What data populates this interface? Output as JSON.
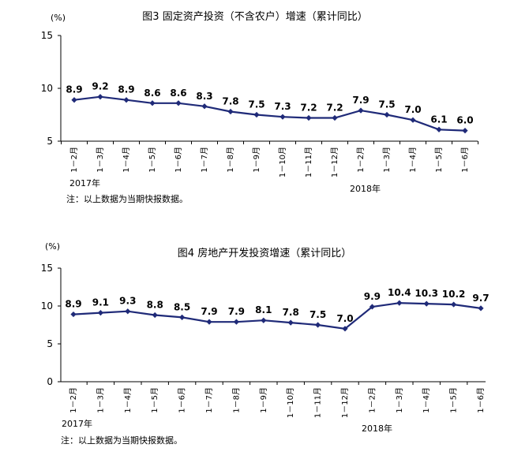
{
  "chart_data": [
    {
      "type": "line",
      "title": "图3   固定资产投资（不含农户）增速（累计同比）",
      "unit": "(%)",
      "yticks": [
        "5",
        "10",
        "15"
      ],
      "ylim": [
        5,
        15
      ],
      "categories": [
        "1－2月",
        "1－3月",
        "1－4月",
        "1－5月",
        "1－6月",
        "1－7月",
        "1－8月",
        "1－9月",
        "1－10月",
        "1－11月",
        "1－12月",
        "1－2月",
        "1－3月",
        "1－4月",
        "1－5月",
        "1－6月"
      ],
      "values": [
        8.9,
        9.2,
        8.9,
        8.6,
        8.6,
        8.3,
        7.8,
        7.5,
        7.3,
        7.2,
        7.2,
        7.9,
        7.5,
        7.0,
        6.1,
        6.0
      ],
      "value_labels": [
        "8.9",
        "9.2",
        "8.9",
        "8.6",
        "8.6",
        "8.3",
        "7.8",
        "7.5",
        "7.3",
        "7.2",
        "7.2",
        "7.9",
        "7.5",
        "7.0",
        "6.1",
        "6.0"
      ],
      "year_labels": [
        "2017年",
        "2018年"
      ],
      "note": "注：以上数据为当期快报数据。",
      "color": "#1f2a78"
    },
    {
      "type": "line",
      "title": "图4   房地产开发投资增速（累计同比）",
      "unit": "(%)",
      "yticks": [
        "0",
        "5",
        "10",
        "15"
      ],
      "ylim": [
        0,
        15
      ],
      "categories": [
        "1－2月",
        "1－3月",
        "1－4月",
        "1－5月",
        "1－6月",
        "1－7月",
        "1－8月",
        "1－9月",
        "1－10月",
        "1－11月",
        "1－12月",
        "1－2月",
        "1－3月",
        "1－4月",
        "1－5月",
        "1－6月"
      ],
      "values": [
        8.9,
        9.1,
        9.3,
        8.8,
        8.5,
        7.9,
        7.9,
        8.1,
        7.8,
        7.5,
        7.0,
        9.9,
        10.4,
        10.3,
        10.2,
        9.7
      ],
      "value_labels": [
        "8.9",
        "9.1",
        "9.3",
        "8.8",
        "8.5",
        "7.9",
        "7.9",
        "8.1",
        "7.8",
        "7.5",
        "7.0",
        "9.9",
        "10.4",
        "10.3",
        "10.2",
        "9.7"
      ],
      "year_labels": [
        "2017年",
        "2018年"
      ],
      "note": "注：以上数据为当期快报数据。",
      "color": "#1f2a78"
    }
  ]
}
